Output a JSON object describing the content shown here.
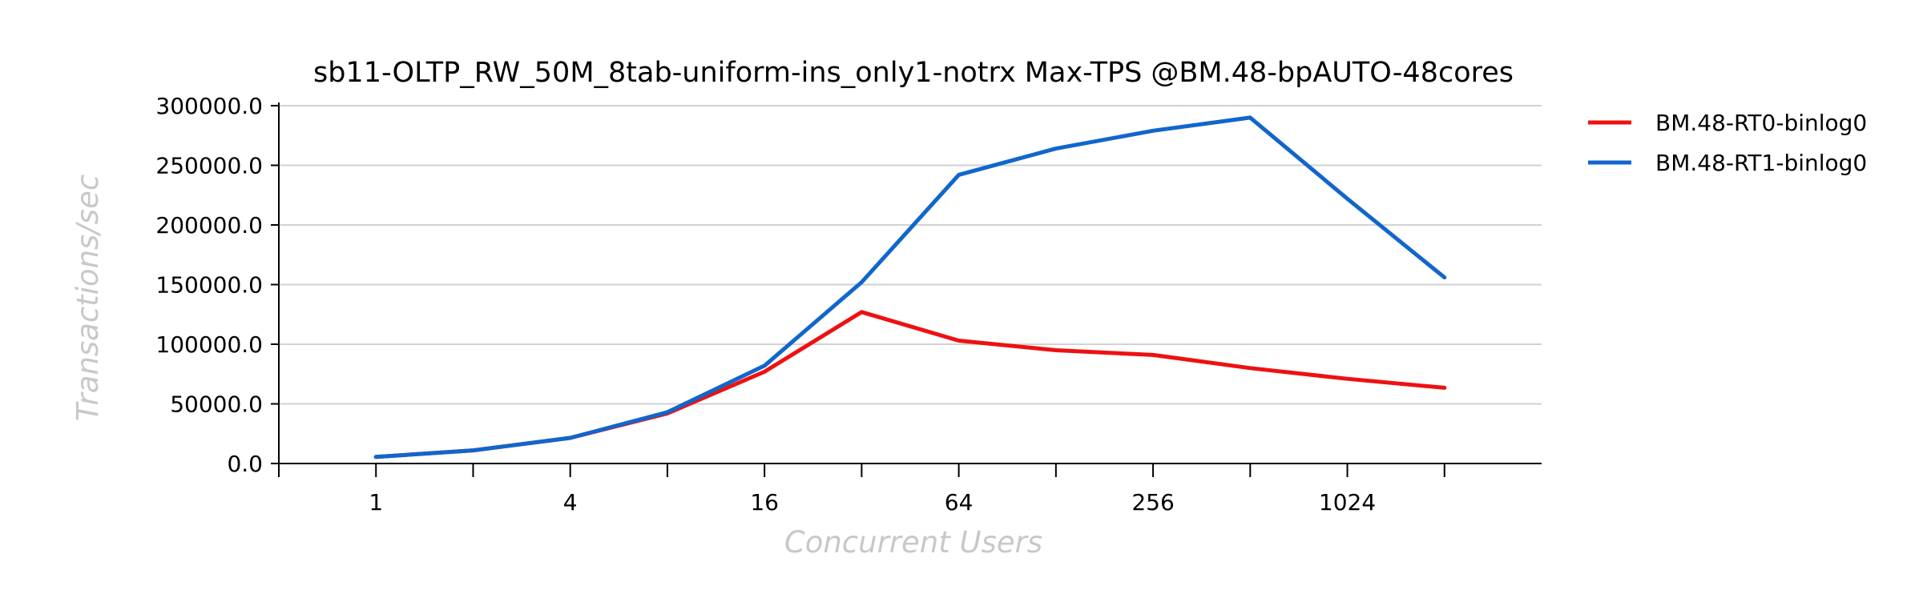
{
  "chart_data": {
    "type": "line",
    "title": "sb11-OLTP_RW_50M_8tab-uniform-ins_only1-notrx Max-TPS @BM.48-bpAUTO-48cores",
    "xlabel": "Concurrent Users",
    "ylabel": "Transactions/sec",
    "x_scale": "log2",
    "x": [
      1,
      2,
      4,
      8,
      16,
      32,
      64,
      128,
      256,
      512,
      1024,
      2048
    ],
    "x_tick_labels": [
      "1",
      "4",
      "16",
      "64",
      "256",
      "1024"
    ],
    "x_tick_values": [
      1,
      4,
      16,
      64,
      256,
      1024
    ],
    "xlim": [
      0.5,
      4096
    ],
    "ylim": [
      0,
      300000
    ],
    "y_ticks": [
      0,
      50000,
      100000,
      150000,
      200000,
      250000,
      300000
    ],
    "y_tick_labels": [
      "0.0",
      "50000.0",
      "100000.0",
      "150000.0",
      "200000.0",
      "250000.0",
      "300000.0"
    ],
    "grid": "horizontal",
    "legend_position": "right",
    "series": [
      {
        "name": "BM.48-RT0-binlog0",
        "color": "#ee1111",
        "values": [
          5500,
          11000,
          21500,
          42000,
          77000,
          127000,
          103000,
          95000,
          91000,
          80000,
          71000,
          63500
        ]
      },
      {
        "name": "BM.48-RT1-binlog0",
        "color": "#1166cc",
        "values": [
          5500,
          11000,
          21500,
          43000,
          82000,
          152000,
          242000,
          264000,
          279000,
          290000,
          222000,
          156000
        ]
      }
    ]
  }
}
